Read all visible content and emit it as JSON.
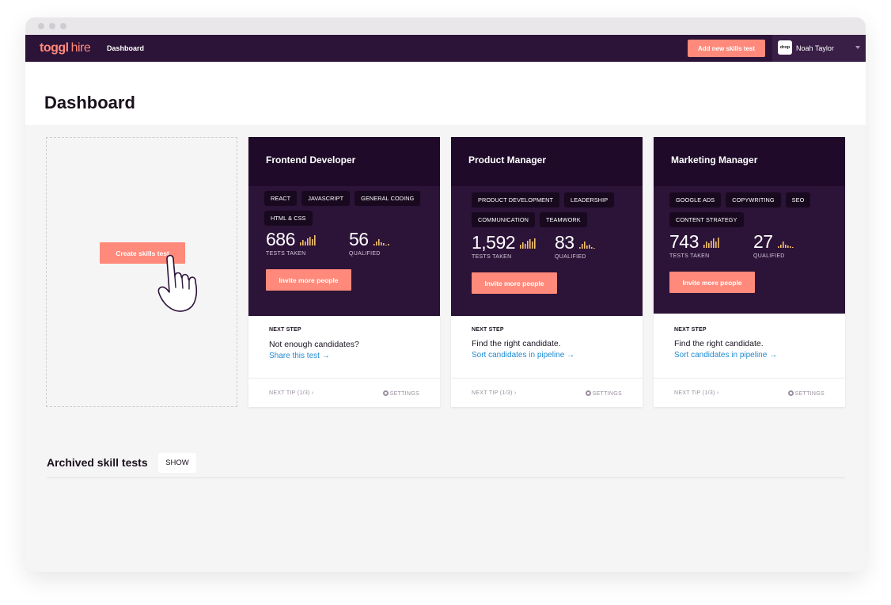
{
  "nav": {
    "logo_a": "toggl",
    "logo_b": "hire",
    "dashboard_link": "Dashboard",
    "add_button": "Add new skills test",
    "company_logo_text": "drop",
    "user_name": "Noah Taylor"
  },
  "page": {
    "title": "Dashboard"
  },
  "create": {
    "button": "Create skills test"
  },
  "cards": [
    {
      "title": "Frontend Developer",
      "tags": [
        "REACT",
        "JAVASCRIPT",
        "GENERAL CODING",
        "HTML & CSS"
      ],
      "tests_taken": "686",
      "tests_taken_label": "TESTS TAKEN",
      "qualified": "56",
      "qualified_label": "QUALIFIED",
      "invite": "Invite more people",
      "next_step_label": "NEXT STEP",
      "next_step_text": "Not enough candidates?",
      "next_step_link": "Share this test →",
      "tip": "NEXT TIP (1/3) ›",
      "settings": "SETTINGS"
    },
    {
      "title": "Product Manager",
      "tags": [
        "PRODUCT DEVELOPMENT",
        "LEADERSHIP",
        "COMMUNICATION",
        "TEAMWORK"
      ],
      "tests_taken": "1,592",
      "tests_taken_label": "TESTS TAKEN",
      "qualified": "83",
      "qualified_label": "QUALIFIED",
      "invite": "Invite more people",
      "next_step_label": "NEXT STEP",
      "next_step_text": "Find the right candidate.",
      "next_step_link": "Sort candidates in pipeline →",
      "tip": "NEXT TIP (1/3) ›",
      "settings": "SETTINGS"
    },
    {
      "title": "Marketing Manager",
      "tags": [
        "GOOGLE ADS",
        "COPYWRITING",
        "SEO",
        "CONTENT STRATEGY"
      ],
      "tests_taken": "743",
      "tests_taken_label": "TESTS TAKEN",
      "qualified": "27",
      "qualified_label": "QUALIFIED",
      "invite": "Invite more people",
      "next_step_label": "NEXT STEP",
      "next_step_text": "Find the right candidate.",
      "next_step_link": "Sort candidates in pipeline →",
      "tip": "NEXT TIP (1/3) ›",
      "settings": "SETTINGS"
    }
  ],
  "archived": {
    "title": "Archived skill tests",
    "show_button": "SHOW"
  },
  "colors": {
    "nav_bg": "#2c1338",
    "accent": "#ff897a",
    "link": "#1f8bd4",
    "spark": "#f5c26b"
  },
  "icons": {
    "hand": "pointing-hand-icon",
    "gear": "gear-icon",
    "caret": "chevron-down-icon"
  }
}
